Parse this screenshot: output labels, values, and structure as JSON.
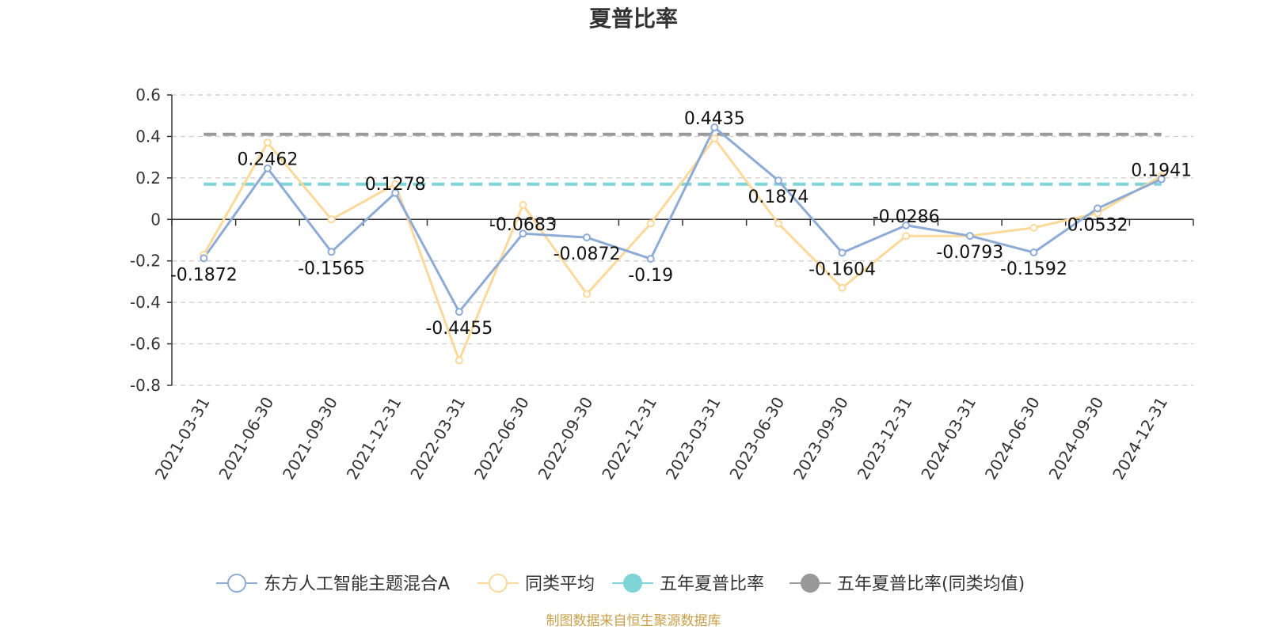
{
  "chart_data": {
    "type": "line",
    "title": "夏普比率",
    "xlabel": "",
    "ylabel": "",
    "ylim": [
      -0.8,
      0.6
    ],
    "yticks": [
      -0.8,
      -0.6,
      -0.4,
      -0.2,
      0,
      0.2,
      0.4,
      0.6
    ],
    "ytick_labels": [
      "-0.8",
      "-0.6",
      "-0.4",
      "-0.2",
      "0",
      "0.2",
      "0.4",
      "0.6"
    ],
    "grid": true,
    "legend_position": "bottom",
    "categories": [
      "2021-03-31",
      "2021-06-30",
      "2021-09-30",
      "2021-12-31",
      "2022-03-31",
      "2022-06-30",
      "2022-09-30",
      "2022-12-31",
      "2023-03-31",
      "2023-06-30",
      "2023-09-30",
      "2023-12-31",
      "2024-03-31",
      "2024-06-30",
      "2024-09-30",
      "2024-12-31"
    ],
    "series": [
      {
        "name": "东方人工智能主题混合A",
        "color": "#8eabd6",
        "values": [
          -0.1872,
          0.2462,
          -0.1565,
          0.1278,
          -0.4455,
          -0.0683,
          -0.0872,
          -0.19,
          0.4435,
          0.1874,
          -0.1604,
          -0.0286,
          -0.0793,
          -0.1592,
          0.0532,
          0.1941
        ],
        "labels": [
          "-0.1872",
          "0.2462",
          "-0.1565",
          "0.1278",
          "-0.4455",
          "-0.0683",
          "-0.0872",
          "-0.19",
          "0.4435",
          "0.1874",
          "-0.1604",
          "-0.0286",
          "-0.0793",
          "-0.1592",
          "0.0532",
          "0.1941"
        ]
      },
      {
        "name": "同类平均",
        "color": "#fcd99a",
        "values": [
          -0.17,
          0.37,
          0.0,
          0.17,
          -0.68,
          0.07,
          -0.36,
          -0.02,
          0.39,
          -0.02,
          -0.33,
          -0.08,
          -0.08,
          -0.04,
          0.03,
          0.21
        ]
      },
      {
        "name": "五年夏普比率",
        "color": "#7fd4d8",
        "value": 0.17
      },
      {
        "name": "五年夏普比率(同类均值)",
        "color": "#999999",
        "value": 0.41
      }
    ],
    "source_note": "制图数据来自恒生聚源数据库"
  }
}
